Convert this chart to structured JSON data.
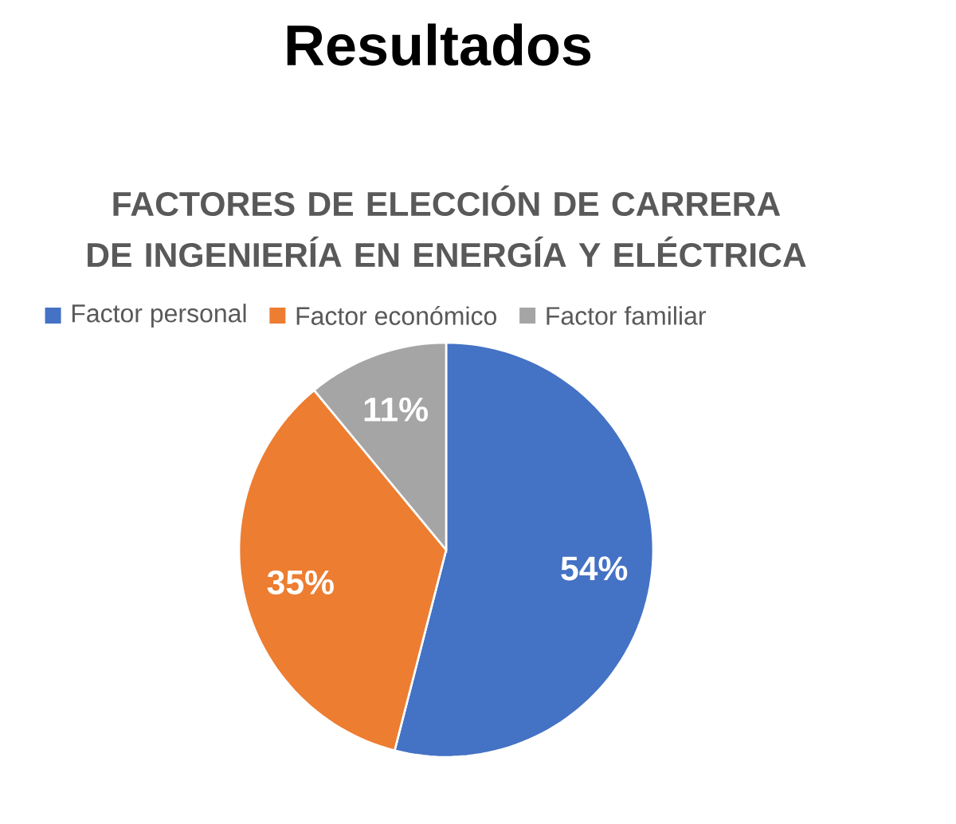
{
  "chart_data": {
    "type": "pie",
    "title": "Resultados",
    "subtitle": "FACTORES DE ELECCIÓN DE CARRERA DE INGENIERÍA EN ENERGÍA Y ELÉCTRICA",
    "categories": [
      "Factor personal",
      "Factor económico",
      "Factor familiar"
    ],
    "values": [
      54,
      35,
      11
    ],
    "value_labels": [
      "54%",
      "35%",
      "11%"
    ],
    "colors": [
      "#4472c4",
      "#ed7d31",
      "#a5a5a5"
    ],
    "legend": "top"
  }
}
